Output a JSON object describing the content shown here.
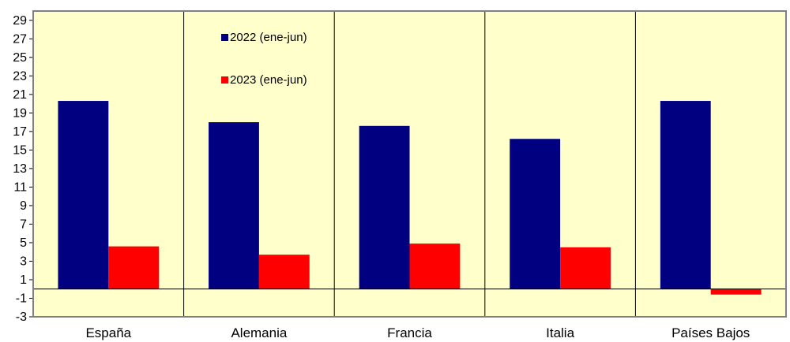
{
  "colors": {
    "plot_background": "#ffffcc",
    "series_2022": "#000080",
    "series_2023": "#ff0000",
    "axis": "#000000",
    "frame": "#808080"
  },
  "chart_data": {
    "type": "bar",
    "categories": [
      "España",
      "Alemania",
      "Francia",
      "Italia",
      "Países Bajos"
    ],
    "series": [
      {
        "name": "2022 (ene-jun)",
        "values": [
          20.3,
          18.0,
          17.6,
          16.2,
          20.3
        ]
      },
      {
        "name": "2023 (ene-jun)",
        "values": [
          4.6,
          3.7,
          4.9,
          4.5,
          -0.6
        ]
      }
    ],
    "ylim": [
      -3,
      30
    ],
    "yticks": [
      29,
      27,
      25,
      23,
      21,
      19,
      17,
      15,
      13,
      11,
      9,
      7,
      5,
      3,
      1,
      -1,
      -3
    ],
    "title": "",
    "xlabel": "",
    "ylabel": "",
    "grid": false,
    "category_separators": true,
    "legend_position": "top-left"
  }
}
